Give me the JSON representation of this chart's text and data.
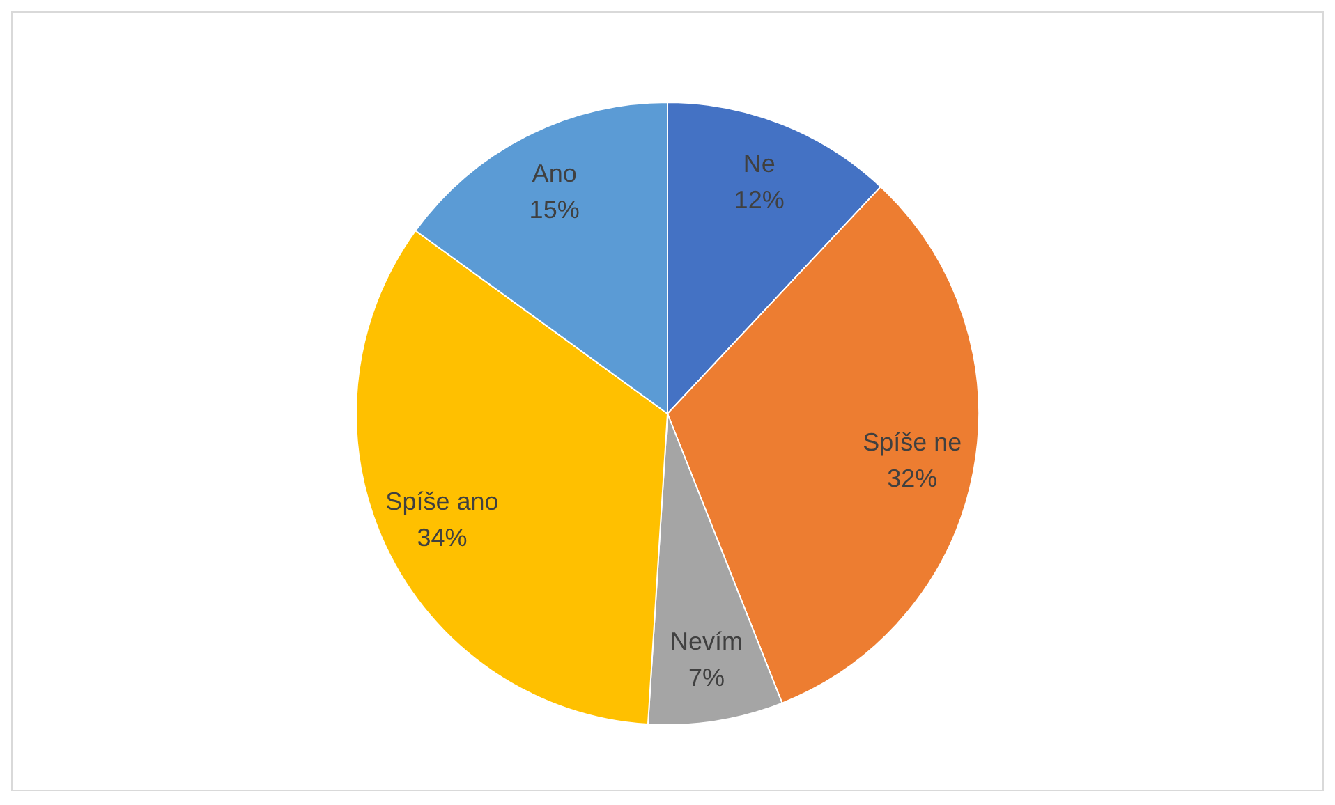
{
  "chart_data": {
    "type": "pie",
    "categories": [
      "Ne",
      "Spíše ne",
      "Nevím",
      "Spíše ano",
      "Ano"
    ],
    "values": [
      12,
      32,
      7,
      34,
      15
    ],
    "colors": [
      "#4472c4",
      "#ed7d31",
      "#a5a5a5",
      "#ffc000",
      "#5b9bd5"
    ],
    "value_labels": [
      "12%",
      "32%",
      "7%",
      "34%",
      "15%"
    ],
    "legend": false
  }
}
